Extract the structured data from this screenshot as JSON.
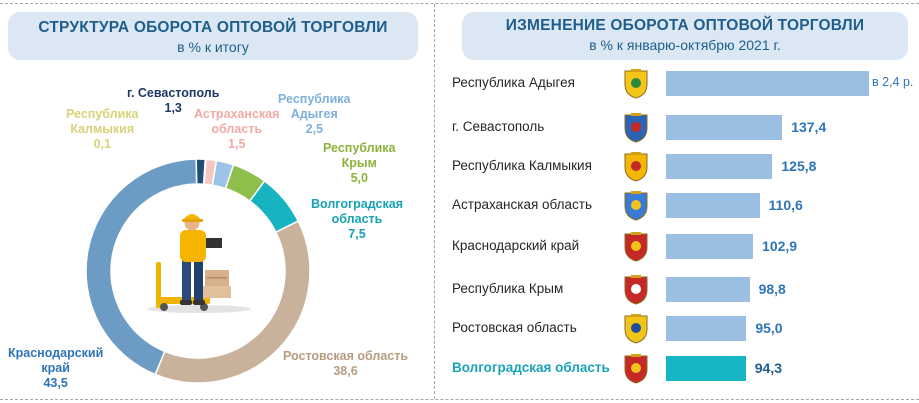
{
  "left_panel": {
    "title": "СТРУКТУРА ОБОРОТА ОПТОВОЙ ТОРГОВЛИ",
    "subtitle": "в % к итогу"
  },
  "right_panel": {
    "title": "ИЗМЕНЕНИЕ ОБОРОТА ОПТОВОЙ ТОРГОВЛИ",
    "subtitle": "в % к январю-октябрю 2021 г."
  },
  "colors": {
    "sevastopol": "#1f4e79",
    "kalmykia": "#e8e3a0",
    "astrakhan": "#f4c7c3",
    "adygea": "#9dc3e6",
    "crimea": "#8dbf4a",
    "volgograd": "#17b3c1",
    "rostov": "#c9b29b",
    "krasnodar": "#6c9cc4",
    "bar": "#9bbfe2",
    "bar_highlight": "#16b6c6"
  },
  "chart_data": [
    {
      "type": "pie",
      "title": "СТРУКТУРА ОБОРОТА ОПТОВОЙ ТОРГОВЛИ",
      "subtitle": "в % к итогу",
      "slices": [
        {
          "name": "г. Севастополь",
          "value": 1.3,
          "label": "1,3",
          "color": "#1f4e79",
          "label_color": "#1f3864"
        },
        {
          "name": "Республика Калмыкия",
          "value": 0.1,
          "label": "0,1",
          "color": "#e8e3a0",
          "label_color": "#d9d27a"
        },
        {
          "name": "Астраханская область",
          "value": 1.5,
          "label": "1,5",
          "color": "#f4c7c3",
          "label_color": "#f0aaa4"
        },
        {
          "name": "Республика Адыгея",
          "value": 2.5,
          "label": "2,5",
          "color": "#9dc3e6",
          "label_color": "#7fb0dc"
        },
        {
          "name": "Республика Крым",
          "value": 5.0,
          "label": "5,0",
          "color": "#8dbf4a",
          "label_color": "#8db33a"
        },
        {
          "name": "Волгоградская область",
          "value": 7.5,
          "label": "7,5",
          "color": "#17b3c1",
          "label_color": "#14a3b5"
        },
        {
          "name": "Ростовская область",
          "value": 38.6,
          "label": "38,6",
          "color": "#c9b29b",
          "label_color": "#b79c80"
        },
        {
          "name": "Краснодарский край",
          "value": 43.5,
          "label": "43,5",
          "color": "#6c9cc4",
          "label_color": "#2e75b6"
        }
      ]
    },
    {
      "type": "bar",
      "orientation": "horizontal",
      "title": "ИЗМЕНЕНИЕ ОБОРОТА ОПТОВОЙ ТОРГОВЛИ",
      "subtitle": "в % к январю-октябрю 2021 г.",
      "categories": [
        "Республика Адыгея",
        "г. Севастополь",
        "Республика Калмыкия",
        "Астраханская область",
        "Краснодарский край",
        "Республика Крым",
        "Ростовская область",
        "Волгоградская область"
      ],
      "values": [
        240,
        137.4,
        125.8,
        110.6,
        102.9,
        98.8,
        95.0,
        94.3
      ],
      "value_labels": [
        "в 2,4 р.",
        "137,4",
        "125,8",
        "110,6",
        "102,9",
        "98,8",
        "95,0",
        "94,3"
      ],
      "highlight": "Волгоградская область"
    }
  ]
}
